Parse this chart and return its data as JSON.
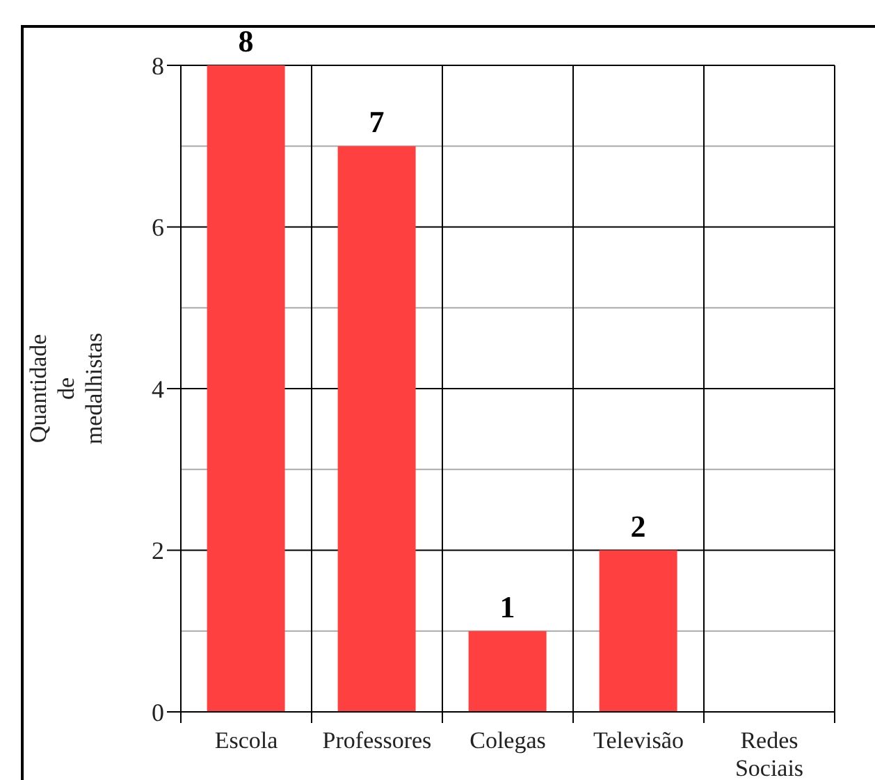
{
  "chart_data": {
    "type": "bar",
    "ylabel": "Quantidade de medalhistas",
    "categories": [
      "Escola",
      "Professores",
      "Colegas",
      "Televisão",
      "Redes Sociais"
    ],
    "values": [
      8,
      7,
      1,
      2,
      0
    ],
    "value_labels": [
      "8",
      "7",
      "1",
      "2",
      null
    ],
    "color": "#ff4040",
    "ylim": [
      0,
      8
    ],
    "yticks": [
      0,
      2,
      4,
      6,
      8
    ],
    "grid": true
  }
}
